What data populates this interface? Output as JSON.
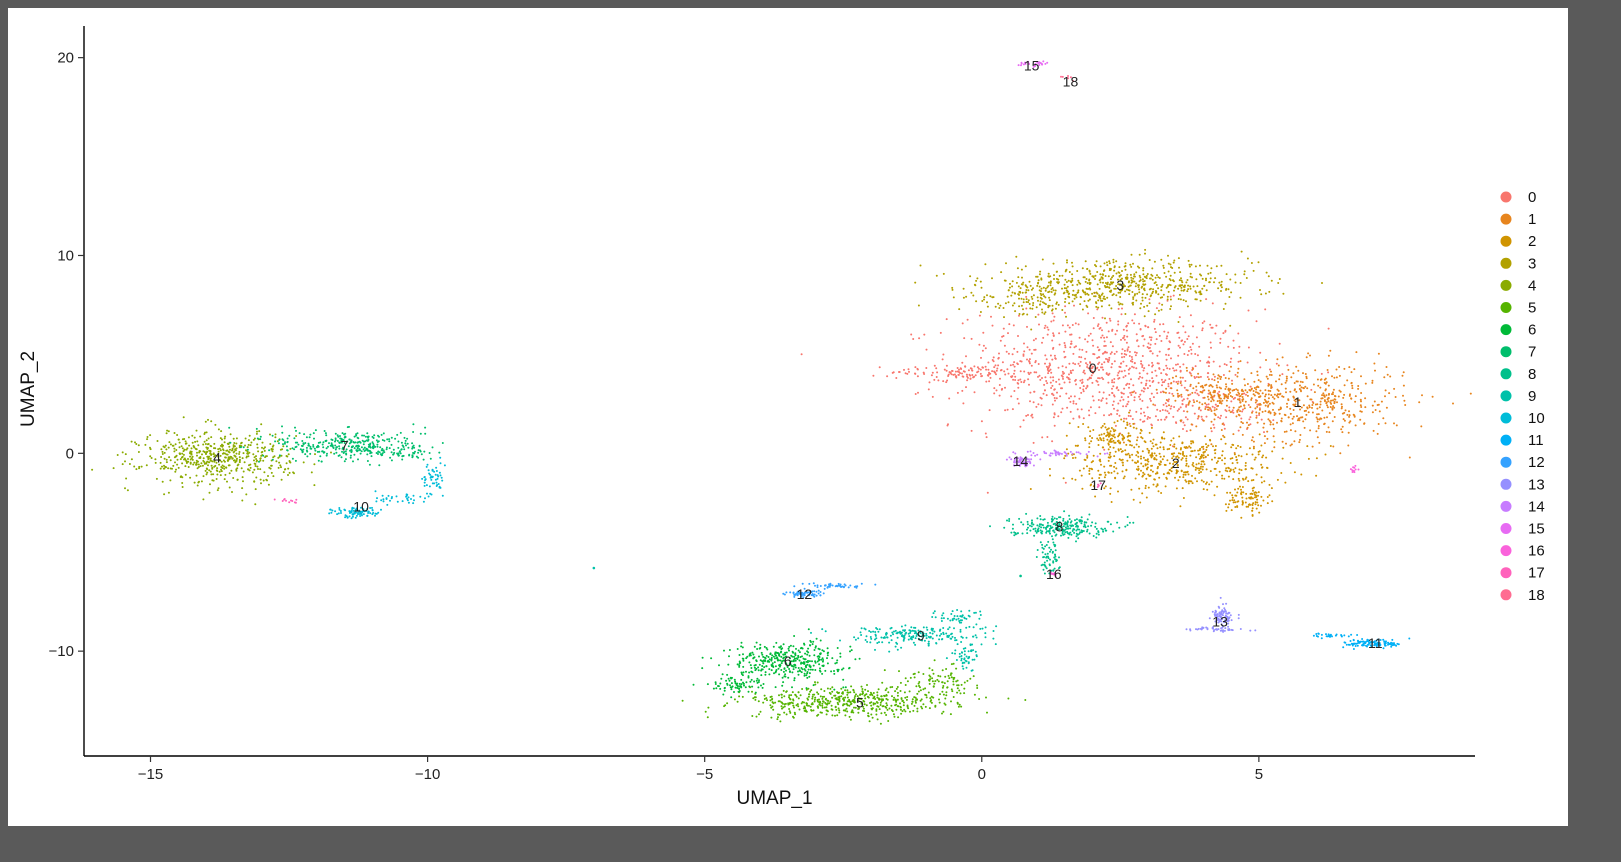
{
  "chart_data": {
    "type": "scatter",
    "title": "",
    "xlabel": "UMAP_1",
    "ylabel": "UMAP_2",
    "xlim": [
      -16.2,
      8.9
    ],
    "ylim": [
      -15.3,
      21.6
    ],
    "x_ticks": [
      -15,
      -10,
      -5,
      0,
      5
    ],
    "y_ticks": [
      -10,
      0,
      10,
      20
    ],
    "x_tick_labels": [
      "−15",
      "−10",
      "−5",
      "0",
      "5"
    ],
    "y_tick_labels": [
      "−10",
      "0",
      "10",
      "20"
    ],
    "grid": false,
    "legend_position": "right",
    "clusters": [
      {
        "name": "0",
        "color": "#F8766D",
        "label": [
          2.0,
          4.3
        ],
        "n": 1100,
        "blobs": [
          [
            2.2,
            4.3,
            1.8,
            2.0,
            0.78
          ],
          [
            -0.3,
            4.1,
            0.9,
            0.25,
            0.1
          ],
          [
            3.8,
            2.2,
            1.2,
            0.8,
            0.12
          ]
        ]
      },
      {
        "name": "1",
        "color": "#E7851E",
        "label": [
          5.7,
          2.6
        ],
        "n": 650,
        "blobs": [
          [
            5.7,
            2.6,
            1.3,
            1.3,
            0.8
          ],
          [
            4.3,
            3.2,
            0.7,
            0.6,
            0.2
          ]
        ]
      },
      {
        "name": "2",
        "color": "#D09400",
        "label": [
          3.5,
          -0.5
        ],
        "n": 700,
        "blobs": [
          [
            3.5,
            -0.5,
            1.3,
            1.0,
            0.72
          ],
          [
            4.8,
            -2.3,
            0.25,
            0.5,
            0.12
          ],
          [
            2.4,
            0.8,
            0.5,
            0.6,
            0.16
          ]
        ]
      },
      {
        "name": "3",
        "color": "#B2A100",
        "label": [
          2.5,
          8.5
        ],
        "n": 700,
        "blobs": [
          [
            2.5,
            8.5,
            1.6,
            0.8,
            0.85
          ],
          [
            0.8,
            7.8,
            0.6,
            0.6,
            0.15
          ]
        ]
      },
      {
        "name": "4",
        "color": "#8BAB00",
        "label": [
          -13.8,
          -0.2
        ],
        "n": 550,
        "blobs": [
          [
            -13.8,
            -0.2,
            0.9,
            0.9,
            1.0
          ]
        ]
      },
      {
        "name": "5",
        "color": "#55B400",
        "label": [
          -2.2,
          -12.6
        ],
        "n": 600,
        "blobs": [
          [
            -2.4,
            -12.6,
            1.3,
            0.5,
            0.85
          ],
          [
            -0.8,
            -11.5,
            0.5,
            0.45,
            0.15
          ]
        ]
      },
      {
        "name": "6",
        "color": "#00BA38",
        "label": [
          -3.5,
          -10.5
        ],
        "n": 450,
        "blobs": [
          [
            -3.5,
            -10.5,
            0.7,
            0.65,
            0.85
          ],
          [
            -4.5,
            -11.7,
            0.3,
            0.3,
            0.15
          ]
        ]
      },
      {
        "name": "7",
        "color": "#00BE6C",
        "label": [
          -11.5,
          0.4
        ],
        "n": 380,
        "blobs": [
          [
            -11.4,
            0.4,
            0.9,
            0.55,
            0.9
          ],
          [
            -10.4,
            0.0,
            0.35,
            0.25,
            0.1
          ]
        ]
      },
      {
        "name": "8",
        "color": "#00C08B",
        "label": [
          1.4,
          -3.7
        ],
        "n": 300,
        "blobs": [
          [
            1.4,
            -3.7,
            0.6,
            0.35,
            0.8
          ],
          [
            1.2,
            -5.2,
            0.12,
            0.6,
            0.2
          ]
        ]
      },
      {
        "name": "9",
        "color": "#00C1A9",
        "label": [
          -1.1,
          -9.2
        ],
        "n": 300,
        "blobs": [
          [
            -1.2,
            -9.2,
            0.9,
            0.35,
            0.7
          ],
          [
            -0.3,
            -10.3,
            0.15,
            0.4,
            0.15
          ],
          [
            -0.4,
            -8.3,
            0.35,
            0.25,
            0.15
          ]
        ]
      },
      {
        "name": "10",
        "color": "#00BCD8",
        "label": [
          -11.2,
          -2.7
        ],
        "n": 170,
        "blobs": [
          [
            -11.3,
            -3.0,
            0.3,
            0.18,
            0.5
          ],
          [
            -9.9,
            -1.3,
            0.12,
            0.6,
            0.3
          ],
          [
            -10.5,
            -2.3,
            0.4,
            0.2,
            0.2
          ]
        ]
      },
      {
        "name": "11",
        "color": "#00B0F6",
        "label": [
          7.1,
          -9.6
        ],
        "n": 140,
        "blobs": [
          [
            7.1,
            -9.6,
            0.35,
            0.15,
            0.8
          ],
          [
            6.3,
            -9.2,
            0.3,
            0.07,
            0.2
          ]
        ]
      },
      {
        "name": "12",
        "color": "#35A2FF",
        "label": [
          -3.2,
          -7.1
        ],
        "n": 110,
        "blobs": [
          [
            -3.2,
            -7.1,
            0.25,
            0.12,
            0.6
          ],
          [
            -2.6,
            -6.7,
            0.35,
            0.08,
            0.4
          ]
        ]
      },
      {
        "name": "13",
        "color": "#9590FF",
        "label": [
          4.3,
          -8.5
        ],
        "n": 130,
        "blobs": [
          [
            4.35,
            -8.3,
            0.12,
            0.35,
            0.7
          ],
          [
            4.2,
            -8.9,
            0.4,
            0.08,
            0.3
          ]
        ]
      },
      {
        "name": "14",
        "color": "#C77CFF",
        "label": [
          0.7,
          -0.4
        ],
        "n": 100,
        "blobs": [
          [
            0.7,
            -0.4,
            0.15,
            0.18,
            0.6
          ],
          [
            1.4,
            0.0,
            0.35,
            0.1,
            0.4
          ]
        ]
      },
      {
        "name": "15",
        "color": "#E76BF3",
        "label": [
          0.9,
          19.6
        ],
        "n": 25,
        "blobs": [
          [
            0.95,
            19.7,
            0.18,
            0.08,
            1.0
          ]
        ]
      },
      {
        "name": "16",
        "color": "#FA62DB",
        "label": [
          1.3,
          -6.1
        ],
        "n": 20,
        "blobs": [
          [
            6.7,
            -0.8,
            0.05,
            0.12,
            0.5
          ],
          [
            1.3,
            -6.1,
            0.05,
            0.1,
            0.5
          ]
        ]
      },
      {
        "name": "17",
        "color": "#FF62BC",
        "label": [
          2.1,
          -1.6
        ],
        "n": 15,
        "blobs": [
          [
            -12.5,
            -2.4,
            0.15,
            0.08,
            0.7
          ],
          [
            2.1,
            -1.6,
            0.05,
            0.1,
            0.3
          ]
        ]
      },
      {
        "name": "18",
        "color": "#FF6C91",
        "label": [
          1.6,
          18.8
        ],
        "n": 6,
        "blobs": [
          [
            1.5,
            19.0,
            0.12,
            0.1,
            1.0
          ]
        ]
      }
    ],
    "outliers": [
      {
        "x": -7.0,
        "y": -5.8,
        "cluster": "9"
      },
      {
        "x": 0.7,
        "y": -6.2,
        "cluster": "8"
      }
    ]
  }
}
